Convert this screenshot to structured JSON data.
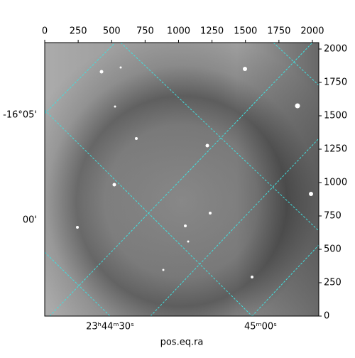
{
  "chart_data": {
    "type": "image",
    "xlabel": "pos.eq.ra",
    "xlim": [
      0,
      2048
    ],
    "ylim": [
      0,
      2048
    ],
    "xticks": [
      0,
      250,
      500,
      750,
      1000,
      1250,
      1500,
      1750,
      2000
    ],
    "yticks": [
      0,
      250,
      500,
      750,
      1000,
      1250,
      1500,
      1750,
      2000
    ],
    "ra_labels": [
      "23ʰ44ᵐ30ˢ",
      "45ᵐ00ˢ"
    ],
    "dec_labels": [
      "-16°05'",
      "00'"
    ]
  }
}
